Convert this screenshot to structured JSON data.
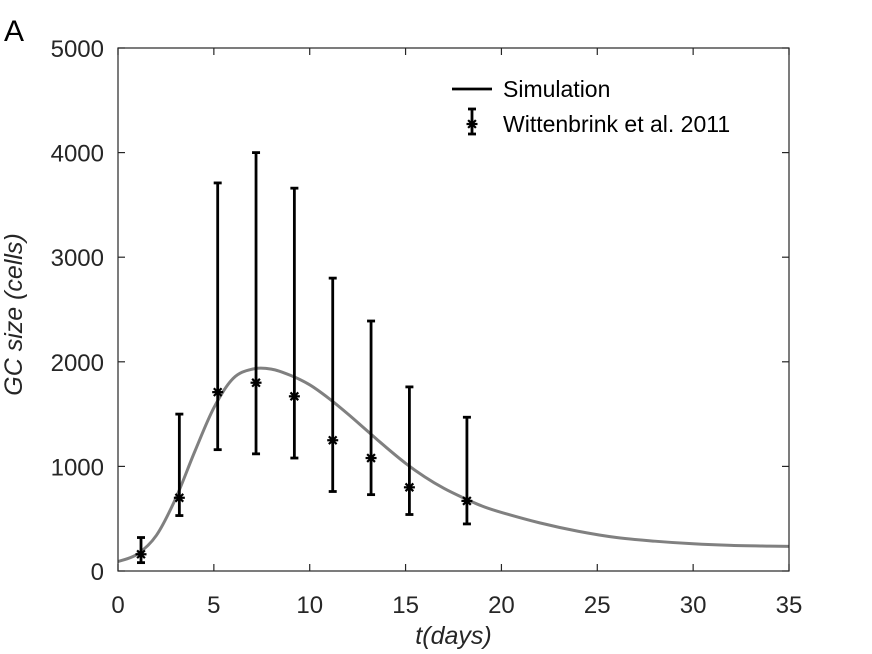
{
  "panel_label": "A",
  "chart_data": {
    "type": "line",
    "xlabel": "t(days)",
    "ylabel": "GC size (cells)",
    "xlim": [
      0,
      35
    ],
    "ylim": [
      0,
      5000
    ],
    "xticks": [
      0,
      5,
      10,
      15,
      20,
      25,
      30,
      35
    ],
    "yticks": [
      0,
      1000,
      2000,
      3000,
      4000,
      5000
    ],
    "grid": false,
    "legend_position": "top-right",
    "series": [
      {
        "name": "Simulation",
        "kind": "line",
        "color": "#808080",
        "x": [
          0,
          1,
          2,
          3,
          4,
          5,
          6,
          7,
          8,
          9,
          10,
          11,
          12,
          13,
          14,
          15,
          16,
          17,
          18,
          19,
          20,
          22,
          24,
          26,
          28,
          30,
          32,
          34,
          35
        ],
        "y": [
          90,
          160,
          340,
          690,
          1140,
          1560,
          1840,
          1930,
          1930,
          1870,
          1780,
          1650,
          1500,
          1340,
          1180,
          1030,
          900,
          790,
          700,
          620,
          560,
          460,
          380,
          320,
          285,
          260,
          245,
          238,
          235
        ]
      },
      {
        "name": "Wittenbrink et al. 2011",
        "kind": "errorbar",
        "color": "#000000",
        "x": [
          1.2,
          3.2,
          5.2,
          7.2,
          9.2,
          11.2,
          13.2,
          15.2,
          18.2
        ],
        "y": [
          160,
          700,
          1710,
          1800,
          1670,
          1250,
          1080,
          800,
          670
        ],
        "lower": [
          80,
          530,
          1160,
          1120,
          1080,
          760,
          730,
          540,
          450
        ],
        "upper": [
          320,
          1500,
          3710,
          4000,
          3660,
          2800,
          2390,
          1760,
          1470
        ]
      }
    ]
  }
}
